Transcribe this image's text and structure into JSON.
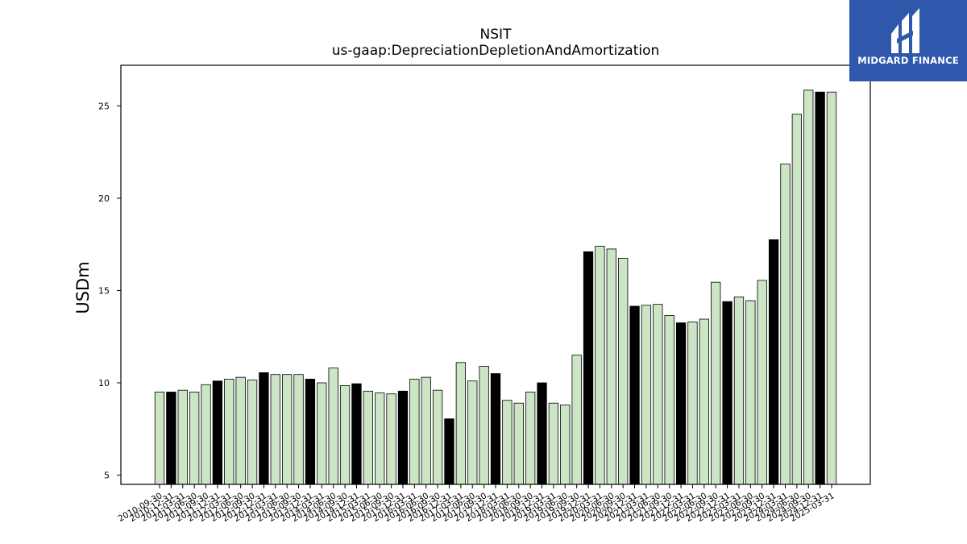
{
  "chart_data": {
    "type": "bar",
    "title": "NSIT",
    "subtitle": "us-gaap:DepreciationDepletionAndAmortization",
    "xlabel": "",
    "ylabel": "USDm",
    "ylim": [
      4.5,
      27.2
    ],
    "yticks": [
      5,
      10,
      15,
      20,
      25
    ],
    "grid": false,
    "colors": {
      "light": "#cce6c5",
      "dark": "#000000",
      "edge": "#000000"
    },
    "categories": [
      "2010-09-30",
      "2010-12-31",
      "2011-03-31",
      "2011-06-30",
      "2011-09-30",
      "2011-12-31",
      "2012-03-31",
      "2012-06-30",
      "2012-09-30",
      "2012-12-31",
      "2013-03-31",
      "2013-06-30",
      "2013-09-30",
      "2013-12-31",
      "2014-03-31",
      "2014-06-30",
      "2014-09-30",
      "2014-12-31",
      "2015-03-31",
      "2015-06-30",
      "2015-09-30",
      "2015-12-31",
      "2016-03-31",
      "2016-06-30",
      "2016-09-30",
      "2016-12-31",
      "2017-03-31",
      "2017-06-30",
      "2017-09-30",
      "2017-12-31",
      "2018-03-31",
      "2018-06-30",
      "2018-09-30",
      "2018-12-31",
      "2019-03-31",
      "2019-06-30",
      "2019-09-30",
      "2019-12-31",
      "2020-03-31",
      "2020-06-30",
      "2020-09-30",
      "2020-12-31",
      "2021-03-31",
      "2021-06-30",
      "2021-09-30",
      "2021-12-31",
      "2022-03-31",
      "2022-06-30",
      "2022-09-30",
      "2022-12-31",
      "2023-03-31",
      "2023-06-30",
      "2023-09-30",
      "2023-12-31",
      "2024-03-31",
      "2024-06-30",
      "2024-09-30",
      "2024-12-31",
      "2025-03-31"
    ],
    "values": [
      9.5,
      9.5,
      9.6,
      9.5,
      9.9,
      10.1,
      10.2,
      10.3,
      10.15,
      10.55,
      10.45,
      10.45,
      10.45,
      10.2,
      10.0,
      10.8,
      9.85,
      9.95,
      9.55,
      9.45,
      9.4,
      9.55,
      10.2,
      10.3,
      9.6,
      8.05,
      11.1,
      10.1,
      10.9,
      10.5,
      9.05,
      8.9,
      9.5,
      10.0,
      8.9,
      8.8,
      11.5,
      17.1,
      17.4,
      17.25,
      16.75,
      14.15,
      14.2,
      14.25,
      13.65,
      13.25,
      13.3,
      13.45,
      15.45,
      14.4,
      14.65,
      14.45,
      15.55,
      17.75,
      21.85,
      24.55,
      25.85,
      25.75,
      25.75
    ],
    "highlight": [
      false,
      true,
      false,
      false,
      false,
      true,
      false,
      false,
      false,
      true,
      false,
      false,
      false,
      true,
      false,
      false,
      false,
      true,
      false,
      false,
      false,
      true,
      false,
      false,
      false,
      true,
      false,
      false,
      false,
      true,
      false,
      false,
      false,
      true,
      false,
      false,
      false,
      true,
      false,
      false,
      false,
      true,
      false,
      false,
      false,
      true,
      false,
      false,
      false,
      true,
      false,
      false,
      false,
      true,
      false,
      false,
      false,
      true,
      false
    ]
  },
  "logo": {
    "text": "MIDGARD FINANCE"
  }
}
